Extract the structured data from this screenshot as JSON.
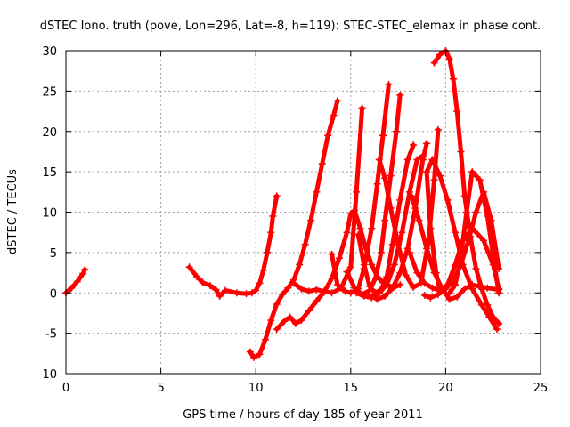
{
  "chart_data": {
    "type": "line",
    "title": "dSTEC Iono. truth (pove, Lon=296, Lat=-8, h=119): STEC-STEC_elemax in phase cont.",
    "xlabel": "GPS time / hours of day 185 of year 2011",
    "ylabel": "dSTEC  / TECUs",
    "xlim": [
      0,
      25
    ],
    "ylim": [
      -10,
      30
    ],
    "x_ticks": [
      0,
      5,
      10,
      15,
      20,
      25
    ],
    "y_ticks": [
      -10,
      -5,
      0,
      5,
      10,
      15,
      20,
      25,
      30
    ],
    "grid": true,
    "color": "#ff0000",
    "marker": "plus",
    "series": [
      {
        "x": [
          0,
          0.3,
          0.6,
          0.9,
          1.0
        ],
        "y": [
          0,
          0.6,
          1.4,
          2.4,
          2.9
        ]
      },
      {
        "x": [
          6.5,
          6.9,
          7.2,
          7.6,
          7.9,
          8.1,
          8.4,
          9.0,
          9.5,
          9.8,
          10.0,
          10.2,
          10.4,
          10.6,
          10.8,
          10.9,
          11.1
        ],
        "y": [
          3.2,
          2.0,
          1.3,
          0.9,
          0.4,
          -0.4,
          0.3,
          0.0,
          -0.1,
          0.0,
          0.3,
          1.2,
          2.8,
          5.0,
          7.5,
          9.5,
          12.0
        ]
      },
      {
        "x": [
          9.7,
          9.9,
          10.2,
          10.5,
          10.8,
          11.1,
          11.4,
          11.7,
          12.0,
          12.3,
          12.6,
          12.9,
          13.2,
          13.5,
          13.8,
          14.1,
          14.3
        ],
        "y": [
          -7.3,
          -8.0,
          -7.6,
          -5.8,
          -3.4,
          -1.4,
          -0.2,
          0.6,
          1.6,
          3.5,
          6.0,
          9.0,
          12.5,
          16.0,
          19.5,
          22.0,
          23.8
        ]
      },
      {
        "x": [
          11.1,
          11.5,
          11.8,
          12.1,
          12.4,
          12.8,
          13.2,
          13.6,
          14.0,
          14.4,
          14.8,
          15.0,
          15.2,
          15.5,
          15.8,
          16.1,
          16.4,
          16.7,
          17.0,
          17.3,
          17.6
        ],
        "y": [
          -4.5,
          -3.5,
          -3.0,
          -3.8,
          -3.4,
          -2.2,
          -1.0,
          0.1,
          1.8,
          4.3,
          7.5,
          9.8,
          10.2,
          8.0,
          5.5,
          3.5,
          2.0,
          1.3,
          0.9,
          0.7,
          1.0
        ]
      },
      {
        "x": [
          12.0,
          12.4,
          12.8,
          13.2,
          13.6,
          14.0,
          14.5,
          15.0,
          15.3,
          15.6
        ],
        "y": [
          1.2,
          0.5,
          0.2,
          0.4,
          0.2,
          0.0,
          0.6,
          3.2,
          12.5,
          22.9
        ]
      },
      {
        "x": [
          14.0,
          14.3,
          14.7,
          15.0,
          15.4,
          15.7,
          16.1,
          16.4,
          16.7,
          17.0
        ],
        "y": [
          4.8,
          1.0,
          0.2,
          0.0,
          0.5,
          3.0,
          8.0,
          13.5,
          19.5,
          25.8
        ]
      },
      {
        "x": [
          14.8,
          15.2,
          15.6,
          16.0,
          16.3,
          16.6,
          16.8,
          17.1,
          17.4,
          17.6
        ],
        "y": [
          2.6,
          0.6,
          -0.2,
          0.3,
          1.8,
          5.0,
          9.0,
          14.5,
          20.0,
          24.5
        ]
      },
      {
        "x": [
          15.4,
          15.7,
          16.0,
          16.3,
          16.6,
          16.9,
          17.2,
          17.6,
          18.0,
          18.3
        ],
        "y": [
          7.2,
          3.5,
          0.8,
          0.0,
          0.4,
          2.0,
          6.0,
          11.5,
          16.5,
          18.3
        ]
      },
      {
        "x": [
          15.3,
          15.7,
          16.1,
          16.5,
          16.9,
          17.3,
          17.7,
          18.1,
          18.5,
          18.8
        ],
        "y": [
          0.0,
          -0.4,
          -0.6,
          0.0,
          1.0,
          3.5,
          7.5,
          12.5,
          16.5,
          17.0
        ]
      },
      {
        "x": [
          16.0,
          16.4,
          16.8,
          17.2,
          17.6,
          18.0,
          18.4,
          18.8,
          19.0
        ],
        "y": [
          -0.3,
          -0.8,
          -0.4,
          0.6,
          2.5,
          5.5,
          10.5,
          16.5,
          18.5
        ]
      },
      {
        "x": [
          16.5,
          16.8,
          17.1,
          17.5,
          17.9,
          18.3,
          18.7,
          19.1,
          19.4,
          19.6
        ],
        "y": [
          16.5,
          14.2,
          10.5,
          6.0,
          2.2,
          0.7,
          1.2,
          6.5,
          14.0,
          20.2
        ]
      },
      {
        "x": [
          18.1,
          18.5,
          18.9,
          19.3,
          19.7,
          20.1,
          20.5,
          20.9,
          21.4,
          22.0,
          22.5,
          22.8
        ],
        "y": [
          5.0,
          2.5,
          1.2,
          0.6,
          0.3,
          1.0,
          3.5,
          6.5,
          8.0,
          6.5,
          3.5,
          0.5
        ]
      },
      {
        "x": [
          18.2,
          18.6,
          19.0,
          19.4,
          19.8,
          20.2,
          20.6,
          21.0,
          21.4,
          21.8,
          22.2,
          22.8
        ],
        "y": [
          12.0,
          9.0,
          5.5,
          2.5,
          0.6,
          -0.8,
          -0.5,
          0.5,
          1.0,
          0.8,
          0.6,
          0.4
        ]
      },
      {
        "x": [
          18.9,
          19.2,
          19.6,
          20.0,
          20.4,
          20.8,
          21.2,
          21.6,
          22.0,
          22.4,
          22.8
        ],
        "y": [
          -0.3,
          -0.6,
          -0.2,
          0.5,
          1.5,
          3.5,
          6.5,
          10.0,
          12.5,
          9.0,
          3.0
        ]
      },
      {
        "x": [
          19.7,
          19.5,
          19.2,
          19.0,
          19.3,
          19.7,
          20.1,
          20.5,
          20.9,
          21.4,
          21.9,
          22.3,
          22.7
        ],
        "y": [
          0.2,
          2.5,
          8.0,
          15.0,
          16.5,
          14.5,
          11.5,
          7.5,
          3.5,
          0.5,
          -1.5,
          -3.0,
          -4.5
        ]
      },
      {
        "x": [
          19.4,
          19.7,
          20.0,
          20.2,
          20.4,
          20.6,
          20.8,
          21.0,
          21.3,
          21.6,
          21.9,
          22.2,
          22.5,
          22.8
        ],
        "y": [
          28.5,
          29.5,
          30.0,
          29.0,
          26.5,
          22.5,
          17.5,
          12.0,
          7.0,
          3.0,
          0.5,
          -1.5,
          -3.0,
          -3.8
        ]
      },
      {
        "x": [
          20.2,
          20.5,
          20.8,
          21.1,
          21.4,
          21.8,
          22.2,
          22.6,
          22.8
        ],
        "y": [
          0.0,
          1.0,
          4.5,
          10.0,
          15.0,
          14.0,
          9.5,
          3.0,
          0.0
        ]
      }
    ]
  }
}
